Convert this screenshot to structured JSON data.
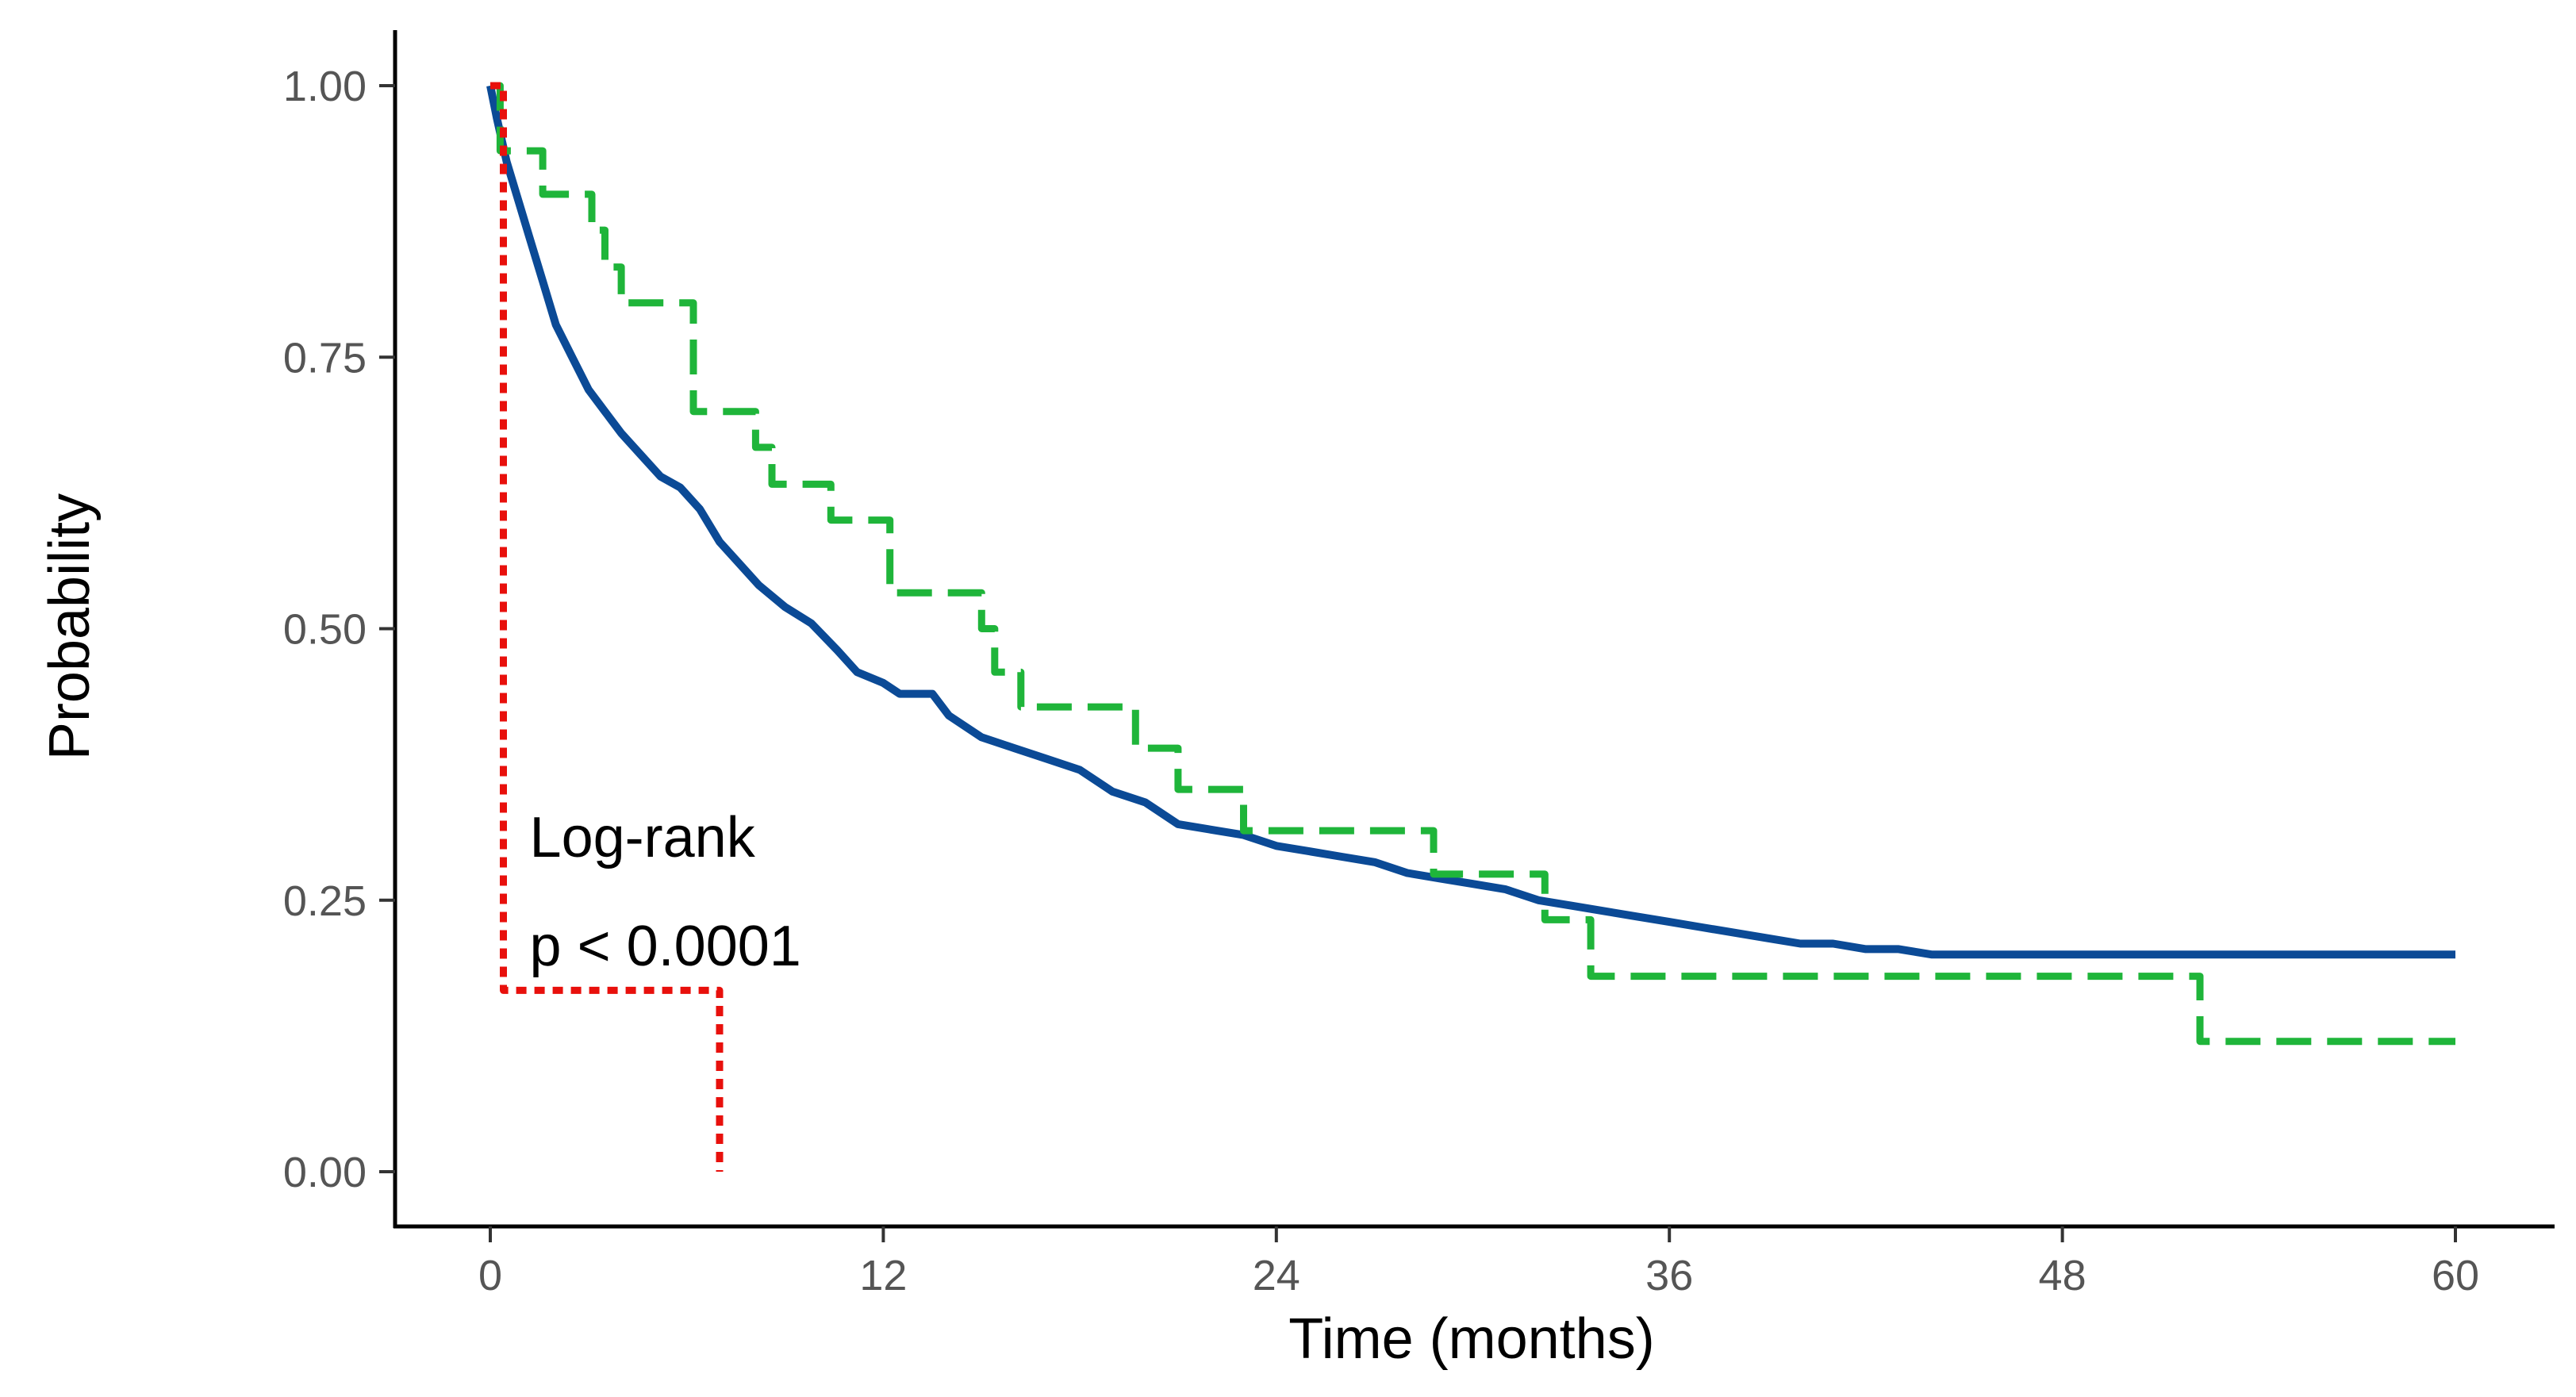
{
  "chart_data": {
    "type": "line",
    "subtype": "kaplan-meier step curves",
    "title": "",
    "xlabel": "Time (months)",
    "ylabel": "Probability",
    "xlim": [
      -1.5,
      62.5
    ],
    "ylim": [
      -0.05,
      1.05
    ],
    "x_ticks": [
      0,
      12,
      24,
      36,
      48,
      60
    ],
    "y_ticks": [
      0.0,
      0.25,
      0.5,
      0.75,
      1.0
    ],
    "x_tick_labels": [
      "0",
      "12",
      "24",
      "36",
      "48",
      "60"
    ],
    "y_tick_labels": [
      "0.00",
      "0.25",
      "0.50",
      "0.75",
      "1.00"
    ],
    "grid": false,
    "legend": "none",
    "annotations": [
      {
        "text": "Log-rank",
        "x": 1.2,
        "y": 0.29
      },
      {
        "text": "p < 0.0001",
        "x": 1.2,
        "y": 0.19
      }
    ],
    "series": [
      {
        "name": "blue",
        "color": "#0b4a96",
        "style": "solid",
        "points": [
          [
            0,
            1.0
          ],
          [
            0.2,
            0.97
          ],
          [
            0.5,
            0.93
          ],
          [
            0.8,
            0.9
          ],
          [
            1.2,
            0.86
          ],
          [
            1.6,
            0.82
          ],
          [
            2.0,
            0.78
          ],
          [
            2.5,
            0.75
          ],
          [
            3.0,
            0.72
          ],
          [
            3.5,
            0.7
          ],
          [
            4.0,
            0.68
          ],
          [
            4.6,
            0.66
          ],
          [
            5.2,
            0.64
          ],
          [
            5.8,
            0.63
          ],
          [
            6.4,
            0.61
          ],
          [
            7.0,
            0.58
          ],
          [
            7.6,
            0.56
          ],
          [
            8.2,
            0.54
          ],
          [
            9.0,
            0.52
          ],
          [
            9.8,
            0.505
          ],
          [
            10.6,
            0.48
          ],
          [
            11.2,
            0.46
          ],
          [
            12.0,
            0.45
          ],
          [
            12.5,
            0.44
          ],
          [
            13.5,
            0.44
          ],
          [
            14.0,
            0.42
          ],
          [
            15.0,
            0.4
          ],
          [
            16.0,
            0.39
          ],
          [
            17.0,
            0.38
          ],
          [
            18.0,
            0.37
          ],
          [
            19.0,
            0.35
          ],
          [
            20.0,
            0.34
          ],
          [
            21.0,
            0.32
          ],
          [
            22.0,
            0.315
          ],
          [
            23.0,
            0.31
          ],
          [
            24.0,
            0.3
          ],
          [
            25.0,
            0.295
          ],
          [
            26.0,
            0.29
          ],
          [
            27.0,
            0.285
          ],
          [
            28.0,
            0.275
          ],
          [
            29.0,
            0.27
          ],
          [
            30.0,
            0.265
          ],
          [
            31.0,
            0.26
          ],
          [
            32.0,
            0.25
          ],
          [
            33.0,
            0.245
          ],
          [
            34.0,
            0.24
          ],
          [
            35.0,
            0.235
          ],
          [
            36.0,
            0.23
          ],
          [
            37.0,
            0.225
          ],
          [
            38.0,
            0.22
          ],
          [
            39.0,
            0.215
          ],
          [
            40.0,
            0.21
          ],
          [
            41.0,
            0.21
          ],
          [
            42.0,
            0.205
          ],
          [
            43.0,
            0.205
          ],
          [
            44.0,
            0.2
          ],
          [
            60.0,
            0.2
          ]
        ]
      },
      {
        "name": "green",
        "color": "#1fb53a",
        "style": "dashed",
        "points": [
          [
            0,
            1.0
          ],
          [
            0.3,
            1.0
          ],
          [
            0.3,
            0.94
          ],
          [
            1.6,
            0.94
          ],
          [
            1.6,
            0.9
          ],
          [
            3.1,
            0.9
          ],
          [
            3.1,
            0.867
          ],
          [
            3.5,
            0.867
          ],
          [
            3.5,
            0.833
          ],
          [
            4.0,
            0.833
          ],
          [
            4.0,
            0.8
          ],
          [
            6.2,
            0.8
          ],
          [
            6.2,
            0.7
          ],
          [
            8.1,
            0.7
          ],
          [
            8.1,
            0.667
          ],
          [
            8.6,
            0.667
          ],
          [
            8.6,
            0.633
          ],
          [
            10.4,
            0.633
          ],
          [
            10.4,
            0.6
          ],
          [
            12.2,
            0.6
          ],
          [
            12.2,
            0.533
          ],
          [
            15.0,
            0.533
          ],
          [
            15.0,
            0.5
          ],
          [
            15.4,
            0.5
          ],
          [
            15.4,
            0.46
          ],
          [
            16.2,
            0.46
          ],
          [
            16.2,
            0.428
          ],
          [
            19.7,
            0.428
          ],
          [
            19.7,
            0.39
          ],
          [
            21.0,
            0.39
          ],
          [
            21.0,
            0.352
          ],
          [
            23.0,
            0.352
          ],
          [
            23.0,
            0.314
          ],
          [
            28.8,
            0.314
          ],
          [
            28.8,
            0.274
          ],
          [
            32.2,
            0.274
          ],
          [
            32.2,
            0.232
          ],
          [
            33.6,
            0.232
          ],
          [
            33.6,
            0.18
          ],
          [
            52.2,
            0.18
          ],
          [
            52.2,
            0.12
          ],
          [
            60.0,
            0.12
          ]
        ]
      },
      {
        "name": "red",
        "color": "#e8100c",
        "style": "dotted",
        "points": [
          [
            0,
            1.0
          ],
          [
            0.4,
            1.0
          ],
          [
            0.4,
            0.167
          ],
          [
            7.0,
            0.167
          ],
          [
            7.0,
            0.0
          ]
        ]
      }
    ]
  }
}
